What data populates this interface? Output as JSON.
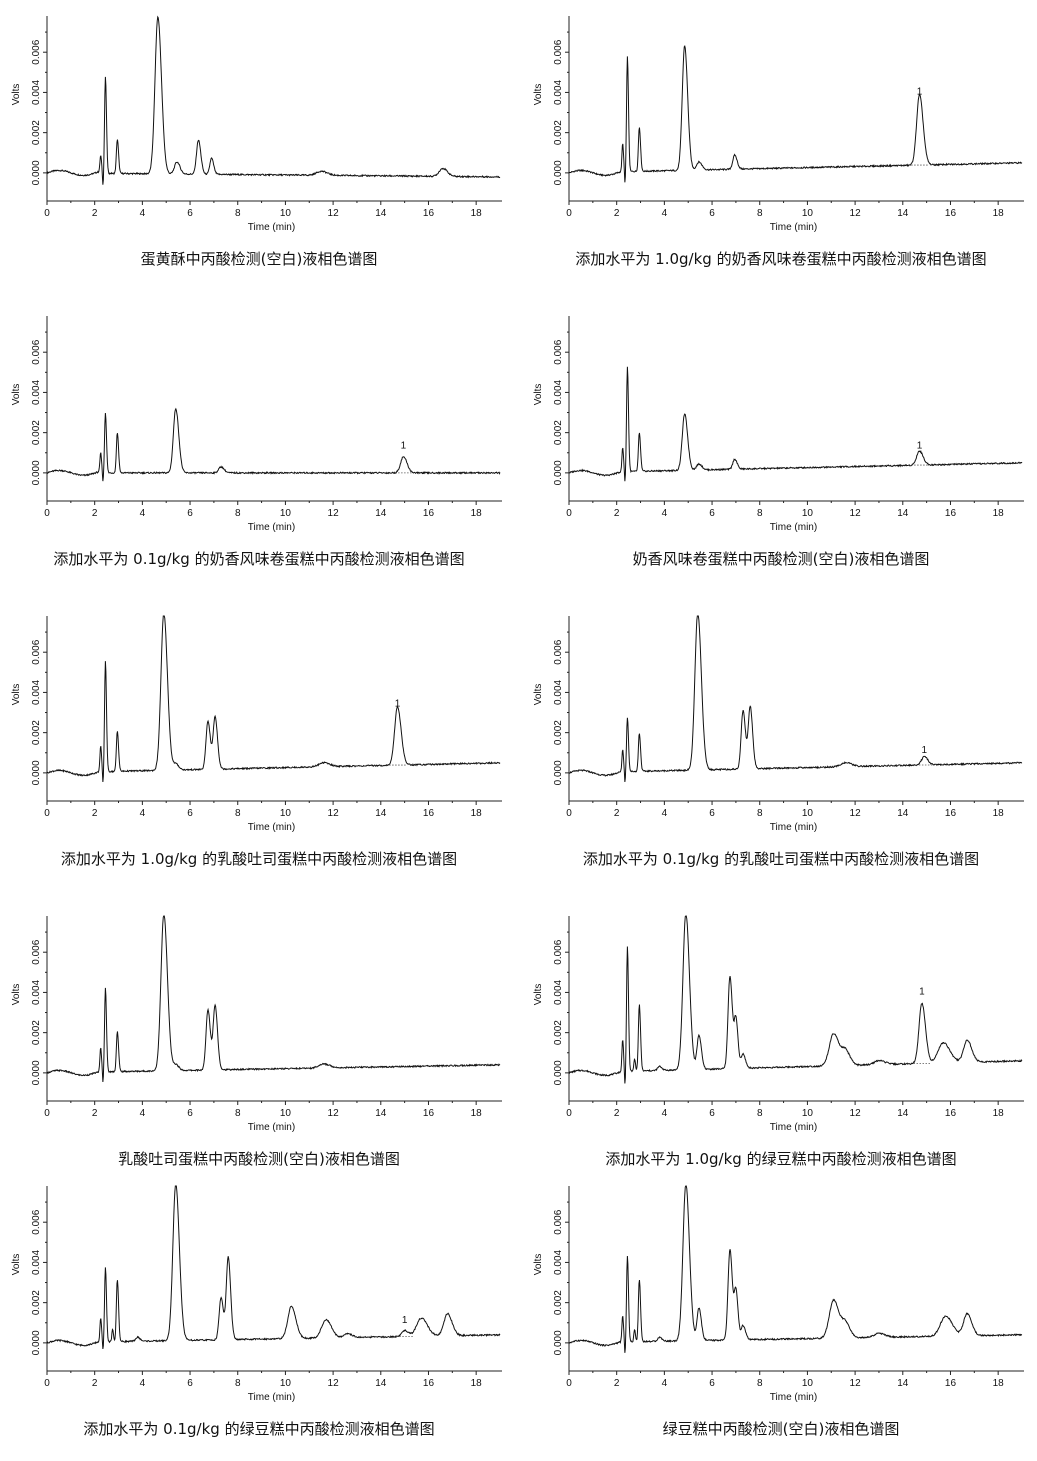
{
  "chart_data": [
    {
      "type": "line",
      "title": "蛋黄酥中丙酸检测(空白)液相色谱图",
      "xlabel": "Time (min)",
      "ylabel": "Volts",
      "xlim": [
        0,
        19
      ],
      "ylim": [
        -0.0012,
        0.0078
      ],
      "x_ticks": [
        "0",
        "2",
        "4",
        "6",
        "8",
        "10",
        "12",
        "14",
        "16",
        "18"
      ],
      "y_ticks": [
        "0.000",
        "0.002",
        "0.004",
        "0.006"
      ],
      "baseline": [
        [
          0,
          0.0
        ],
        [
          19,
          -0.0002
        ]
      ],
      "peaks": [
        {
          "x": 2.25,
          "y": 0.0009,
          "w": 0.03
        },
        {
          "x": 2.45,
          "y": 0.0048,
          "w": 0.035
        },
        {
          "x": 2.95,
          "y": 0.0017,
          "w": 0.04
        },
        {
          "x": 4.65,
          "y": 0.0078,
          "w": 0.12
        },
        {
          "x": 5.45,
          "y": 0.0006,
          "w": 0.1
        },
        {
          "x": 6.35,
          "y": 0.0017,
          "w": 0.08
        },
        {
          "x": 6.9,
          "y": 0.0008,
          "w": 0.07
        },
        {
          "x": 11.5,
          "y": 0.0002,
          "w": 0.2
        },
        {
          "x": 16.6,
          "y": 0.0004,
          "w": 0.15
        }
      ],
      "dips": [
        {
          "x": 2.35,
          "y": -0.0007
        }
      ],
      "peak_labels": []
    },
    {
      "type": "line",
      "title": "添加水平为 1.0g/kg 的奶香风味卷蛋糕中丙酸检测液相色谱图",
      "xlabel": "Time (min)",
      "ylabel": "Volts",
      "xlim": [
        0,
        19
      ],
      "ylim": [
        -0.0012,
        0.0078
      ],
      "x_ticks": [
        "0",
        "2",
        "4",
        "6",
        "8",
        "10",
        "12",
        "14",
        "16",
        "18"
      ],
      "y_ticks": [
        "0.000",
        "0.002",
        "0.004",
        "0.006"
      ],
      "baseline": [
        [
          0,
          0.0
        ],
        [
          19,
          0.0005
        ]
      ],
      "peaks": [
        {
          "x": 2.25,
          "y": 0.0014,
          "w": 0.03
        },
        {
          "x": 2.45,
          "y": 0.0057,
          "w": 0.035
        },
        {
          "x": 2.95,
          "y": 0.0022,
          "w": 0.04
        },
        {
          "x": 4.85,
          "y": 0.0062,
          "w": 0.1
        },
        {
          "x": 5.45,
          "y": 0.0004,
          "w": 0.1
        },
        {
          "x": 6.95,
          "y": 0.0007,
          "w": 0.08
        },
        {
          "x": 14.7,
          "y": 0.0035,
          "w": 0.12
        }
      ],
      "dips": [
        {
          "x": 2.35,
          "y": -0.0007
        }
      ],
      "peak_labels": [
        {
          "text": "1",
          "x": 14.7,
          "y": 0.0039
        }
      ]
    },
    {
      "type": "line",
      "title": "添加水平为 0.1g/kg 的奶香风味卷蛋糕中丙酸检测液相色谱图",
      "xlabel": "Time (min)",
      "ylabel": "Volts",
      "xlim": [
        0,
        19
      ],
      "ylim": [
        -0.0012,
        0.0078
      ],
      "x_ticks": [
        "0",
        "2",
        "4",
        "6",
        "8",
        "10",
        "12",
        "14",
        "16",
        "18"
      ],
      "y_ticks": [
        "0.000",
        "0.002",
        "0.004",
        "0.006"
      ],
      "baseline": [
        [
          0,
          0.0
        ],
        [
          19,
          0.0
        ]
      ],
      "peaks": [
        {
          "x": 2.25,
          "y": 0.001,
          "w": 0.03
        },
        {
          "x": 2.45,
          "y": 0.003,
          "w": 0.035
        },
        {
          "x": 2.95,
          "y": 0.002,
          "w": 0.04
        },
        {
          "x": 5.4,
          "y": 0.0032,
          "w": 0.1
        },
        {
          "x": 7.3,
          "y": 0.0003,
          "w": 0.1
        },
        {
          "x": 14.95,
          "y": 0.0008,
          "w": 0.12
        }
      ],
      "dips": [
        {
          "x": 2.35,
          "y": -0.0005
        }
      ],
      "peak_labels": [
        {
          "text": "1",
          "x": 14.95,
          "y": 0.0012
        }
      ]
    },
    {
      "type": "line",
      "title": "奶香风味卷蛋糕中丙酸检测(空白)液相色谱图",
      "xlabel": "Time (min)",
      "ylabel": "Volts",
      "xlim": [
        0,
        19
      ],
      "ylim": [
        -0.0012,
        0.0078
      ],
      "x_ticks": [
        "0",
        "2",
        "4",
        "6",
        "8",
        "10",
        "12",
        "14",
        "16",
        "18"
      ],
      "y_ticks": [
        "0.000",
        "0.002",
        "0.004",
        "0.006"
      ],
      "baseline": [
        [
          0,
          0.0
        ],
        [
          19,
          0.0005
        ]
      ],
      "peaks": [
        {
          "x": 2.25,
          "y": 0.0012,
          "w": 0.03
        },
        {
          "x": 2.45,
          "y": 0.0052,
          "w": 0.035
        },
        {
          "x": 2.95,
          "y": 0.0019,
          "w": 0.04
        },
        {
          "x": 4.85,
          "y": 0.0028,
          "w": 0.1
        },
        {
          "x": 5.45,
          "y": 0.0003,
          "w": 0.1
        },
        {
          "x": 6.95,
          "y": 0.0005,
          "w": 0.08
        },
        {
          "x": 14.7,
          "y": 0.0007,
          "w": 0.12
        }
      ],
      "dips": [
        {
          "x": 2.35,
          "y": -0.0006
        }
      ],
      "peak_labels": [
        {
          "text": "1",
          "x": 14.7,
          "y": 0.0012
        }
      ]
    },
    {
      "type": "line",
      "title": "添加水平为 1.0g/kg 的乳酸吐司蛋糕中丙酸检测液相色谱图",
      "xlabel": "Time (min)",
      "ylabel": "Volts",
      "xlim": [
        0,
        19
      ],
      "ylim": [
        -0.0012,
        0.0078
      ],
      "x_ticks": [
        "0",
        "2",
        "4",
        "6",
        "8",
        "10",
        "12",
        "14",
        "16",
        "18"
      ],
      "y_ticks": [
        "0.000",
        "0.002",
        "0.004",
        "0.006"
      ],
      "baseline": [
        [
          0,
          0.0
        ],
        [
          19,
          0.0005
        ]
      ],
      "peaks": [
        {
          "x": 2.25,
          "y": 0.0013,
          "w": 0.03
        },
        {
          "x": 2.45,
          "y": 0.0055,
          "w": 0.035
        },
        {
          "x": 2.95,
          "y": 0.002,
          "w": 0.04
        },
        {
          "x": 4.9,
          "y": 0.0078,
          "w": 0.12
        },
        {
          "x": 5.4,
          "y": 0.0003,
          "w": 0.1
        },
        {
          "x": 6.75,
          "y": 0.0024,
          "w": 0.08
        },
        {
          "x": 7.05,
          "y": 0.0026,
          "w": 0.08
        },
        {
          "x": 11.6,
          "y": 0.0002,
          "w": 0.2
        },
        {
          "x": 14.7,
          "y": 0.0029,
          "w": 0.12
        }
      ],
      "dips": [
        {
          "x": 2.35,
          "y": -0.0007
        }
      ],
      "peak_labels": [
        {
          "text": "1",
          "x": 14.7,
          "y": 0.0033
        }
      ]
    },
    {
      "type": "line",
      "title": "添加水平为 0.1g/kg 的乳酸吐司蛋糕中丙酸检测液相色谱图",
      "xlabel": "Time (min)",
      "ylabel": "Volts",
      "xlim": [
        0,
        19
      ],
      "ylim": [
        -0.0012,
        0.0078
      ],
      "x_ticks": [
        "0",
        "2",
        "4",
        "6",
        "8",
        "10",
        "12",
        "14",
        "16",
        "18"
      ],
      "y_ticks": [
        "0.000",
        "0.002",
        "0.004",
        "0.006"
      ],
      "baseline": [
        [
          0,
          0.0
        ],
        [
          19,
          0.0005
        ]
      ],
      "peaks": [
        {
          "x": 2.25,
          "y": 0.0011,
          "w": 0.03
        },
        {
          "x": 2.45,
          "y": 0.0027,
          "w": 0.035
        },
        {
          "x": 2.95,
          "y": 0.0019,
          "w": 0.04
        },
        {
          "x": 5.4,
          "y": 0.0078,
          "w": 0.12
        },
        {
          "x": 7.3,
          "y": 0.0029,
          "w": 0.08
        },
        {
          "x": 7.6,
          "y": 0.0031,
          "w": 0.08
        },
        {
          "x": 11.6,
          "y": 0.0002,
          "w": 0.2
        },
        {
          "x": 14.9,
          "y": 0.0004,
          "w": 0.12
        }
      ],
      "dips": [
        {
          "x": 2.35,
          "y": -0.0006
        }
      ],
      "peak_labels": [
        {
          "text": "1",
          "x": 14.9,
          "y": 0.001
        }
      ]
    },
    {
      "type": "line",
      "title": "乳酸吐司蛋糕中丙酸检测(空白)液相色谱图",
      "xlabel": "Time (min)",
      "ylabel": "Volts",
      "xlim": [
        0,
        19
      ],
      "ylim": [
        -0.0012,
        0.0078
      ],
      "x_ticks": [
        "0",
        "2",
        "4",
        "6",
        "8",
        "10",
        "12",
        "14",
        "16",
        "18"
      ],
      "y_ticks": [
        "0.000",
        "0.002",
        "0.004",
        "0.006"
      ],
      "baseline": [
        [
          0,
          0.0
        ],
        [
          19,
          0.0004
        ]
      ],
      "peaks": [
        {
          "x": 2.25,
          "y": 0.0012,
          "w": 0.03
        },
        {
          "x": 2.45,
          "y": 0.0042,
          "w": 0.035
        },
        {
          "x": 2.95,
          "y": 0.002,
          "w": 0.04
        },
        {
          "x": 4.9,
          "y": 0.0078,
          "w": 0.12
        },
        {
          "x": 5.4,
          "y": 0.0003,
          "w": 0.1
        },
        {
          "x": 6.75,
          "y": 0.003,
          "w": 0.08
        },
        {
          "x": 7.05,
          "y": 0.0032,
          "w": 0.08
        },
        {
          "x": 11.6,
          "y": 0.0002,
          "w": 0.2
        }
      ],
      "dips": [
        {
          "x": 2.35,
          "y": -0.0006
        }
      ],
      "peak_labels": []
    },
    {
      "type": "line",
      "title": "添加水平为 1.0g/kg 的绿豆糕中丙酸检测液相色谱图",
      "xlabel": "Time (min)",
      "ylabel": "Volts",
      "xlim": [
        0,
        19
      ],
      "ylim": [
        -0.0012,
        0.0078
      ],
      "x_ticks": [
        "0",
        "2",
        "4",
        "6",
        "8",
        "10",
        "12",
        "14",
        "16",
        "18"
      ],
      "y_ticks": [
        "0.000",
        "0.002",
        "0.004",
        "0.006"
      ],
      "baseline": [
        [
          0,
          0.0
        ],
        [
          19,
          0.0006
        ]
      ],
      "peaks": [
        {
          "x": 2.25,
          "y": 0.0016,
          "w": 0.03
        },
        {
          "x": 2.45,
          "y": 0.0062,
          "w": 0.035
        },
        {
          "x": 2.75,
          "y": 0.0006,
          "w": 0.03
        },
        {
          "x": 2.95,
          "y": 0.0033,
          "w": 0.04
        },
        {
          "x": 3.8,
          "y": 0.0002,
          "w": 0.08
        },
        {
          "x": 4.9,
          "y": 0.0078,
          "w": 0.12
        },
        {
          "x": 5.45,
          "y": 0.0017,
          "w": 0.08
        },
        {
          "x": 6.75,
          "y": 0.0046,
          "w": 0.08
        },
        {
          "x": 7.0,
          "y": 0.0024,
          "w": 0.07
        },
        {
          "x": 7.3,
          "y": 0.0007,
          "w": 0.08
        },
        {
          "x": 11.1,
          "y": 0.0016,
          "w": 0.18
        },
        {
          "x": 11.6,
          "y": 0.0007,
          "w": 0.15
        },
        {
          "x": 13.0,
          "y": 0.0002,
          "w": 0.2
        },
        {
          "x": 14.8,
          "y": 0.003,
          "w": 0.12
        },
        {
          "x": 15.7,
          "y": 0.001,
          "w": 0.22
        },
        {
          "x": 16.7,
          "y": 0.0011,
          "w": 0.15
        }
      ],
      "dips": [
        {
          "x": 2.35,
          "y": -0.0008
        }
      ],
      "peak_labels": [
        {
          "text": "1",
          "x": 14.8,
          "y": 0.0039
        }
      ]
    },
    {
      "type": "line",
      "title": "添加水平为 0.1g/kg 的绿豆糕中丙酸检测液相色谱图",
      "xlabel": "Time (min)",
      "ylabel": "Volts",
      "xlim": [
        0,
        19
      ],
      "ylim": [
        -0.0012,
        0.0078
      ],
      "x_ticks": [
        "0",
        "2",
        "4",
        "6",
        "8",
        "10",
        "12",
        "14",
        "16",
        "18"
      ],
      "y_ticks": [
        "0.000",
        "0.002",
        "0.004",
        "0.006"
      ],
      "baseline": [
        [
          0,
          0.0
        ],
        [
          19,
          0.0004
        ]
      ],
      "peaks": [
        {
          "x": 2.25,
          "y": 0.0012,
          "w": 0.03
        },
        {
          "x": 2.45,
          "y": 0.0037,
          "w": 0.035
        },
        {
          "x": 2.75,
          "y": 0.0006,
          "w": 0.03
        },
        {
          "x": 2.95,
          "y": 0.0031,
          "w": 0.04
        },
        {
          "x": 3.8,
          "y": 0.0002,
          "w": 0.08
        },
        {
          "x": 5.4,
          "y": 0.0078,
          "w": 0.12
        },
        {
          "x": 7.3,
          "y": 0.0021,
          "w": 0.08
        },
        {
          "x": 7.6,
          "y": 0.0041,
          "w": 0.08
        },
        {
          "x": 10.25,
          "y": 0.0016,
          "w": 0.15
        },
        {
          "x": 11.7,
          "y": 0.0009,
          "w": 0.18
        },
        {
          "x": 12.6,
          "y": 0.0002,
          "w": 0.15
        },
        {
          "x": 15.0,
          "y": 0.0003,
          "w": 0.12
        },
        {
          "x": 15.7,
          "y": 0.0009,
          "w": 0.2
        },
        {
          "x": 16.8,
          "y": 0.0011,
          "w": 0.15
        }
      ],
      "dips": [
        {
          "x": 2.35,
          "y": -0.0005
        }
      ],
      "peak_labels": [
        {
          "text": "1",
          "x": 15.0,
          "y": 0.001
        }
      ]
    },
    {
      "type": "line",
      "title": "绿豆糕中丙酸检测(空白)液相色谱图",
      "xlabel": "Time (min)",
      "ylabel": "Volts",
      "xlim": [
        0,
        19
      ],
      "ylim": [
        -0.0012,
        0.0078
      ],
      "x_ticks": [
        "0",
        "2",
        "4",
        "6",
        "8",
        "10",
        "12",
        "14",
        "16",
        "18"
      ],
      "y_ticks": [
        "0.000",
        "0.002",
        "0.004",
        "0.006"
      ],
      "baseline": [
        [
          0,
          0.0
        ],
        [
          19,
          0.0004
        ]
      ],
      "peaks": [
        {
          "x": 2.25,
          "y": 0.0013,
          "w": 0.03
        },
        {
          "x": 2.45,
          "y": 0.0043,
          "w": 0.035
        },
        {
          "x": 2.75,
          "y": 0.0006,
          "w": 0.03
        },
        {
          "x": 2.95,
          "y": 0.0031,
          "w": 0.04
        },
        {
          "x": 3.8,
          "y": 0.0002,
          "w": 0.08
        },
        {
          "x": 4.9,
          "y": 0.0078,
          "w": 0.12
        },
        {
          "x": 5.45,
          "y": 0.0016,
          "w": 0.08
        },
        {
          "x": 6.75,
          "y": 0.0045,
          "w": 0.08
        },
        {
          "x": 7.0,
          "y": 0.0024,
          "w": 0.07
        },
        {
          "x": 7.3,
          "y": 0.0007,
          "w": 0.08
        },
        {
          "x": 11.1,
          "y": 0.0019,
          "w": 0.18
        },
        {
          "x": 11.6,
          "y": 0.0007,
          "w": 0.15
        },
        {
          "x": 13.0,
          "y": 0.0002,
          "w": 0.2
        },
        {
          "x": 15.8,
          "y": 0.001,
          "w": 0.22
        },
        {
          "x": 16.7,
          "y": 0.0011,
          "w": 0.15
        }
      ],
      "dips": [
        {
          "x": 2.35,
          "y": -0.0007
        }
      ],
      "peak_labels": []
    }
  ]
}
